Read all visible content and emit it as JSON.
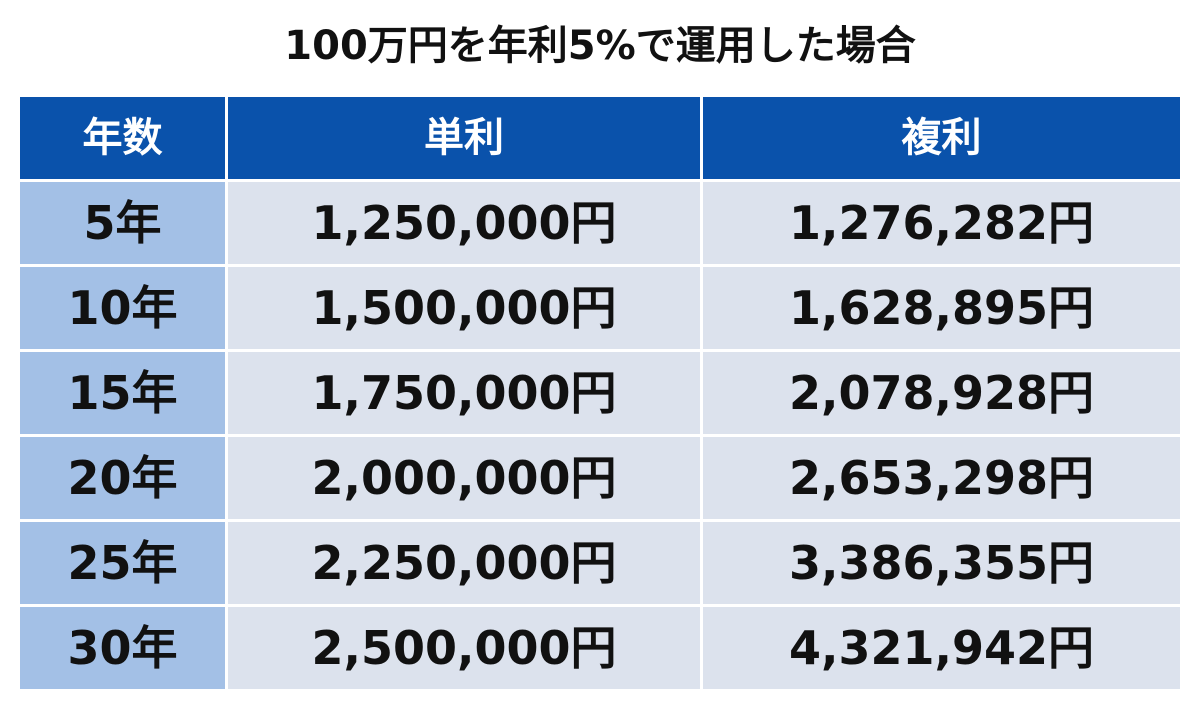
{
  "header": {
    "title": "100万円を年利5%で運用した場合"
  },
  "table": {
    "columns": [
      "年数",
      "単利",
      "複利"
    ],
    "rows": [
      [
        "5年",
        "1,250,000円",
        "1,276,282円"
      ],
      [
        "10年",
        "1,500,000円",
        "1,628,895円"
      ],
      [
        "15年",
        "1,750,000円",
        "2,078,928円"
      ],
      [
        "20年",
        "2,000,000円",
        "2,653,298円"
      ],
      [
        "25年",
        "2,250,000円",
        "3,386,355円"
      ],
      [
        "30年",
        "2,500,000円",
        "4,321,942円"
      ]
    ]
  }
}
